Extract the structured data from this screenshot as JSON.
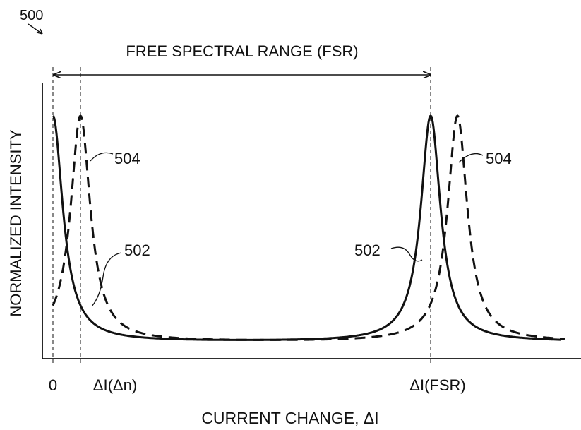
{
  "figure": {
    "number": "500",
    "title": "FREE SPECTRAL RANGE (FSR)",
    "xlabel": "CURRENT CHANGE, ΔI",
    "ylabel": "NORMALIZED INTENSITY",
    "ticks": {
      "zero": "0",
      "delta_n": "ΔI(Δn)",
      "fsr": "ΔI(FSR)"
    },
    "callouts": {
      "left_504": "504",
      "right_504": "504",
      "left_502": "502",
      "right_502": "502"
    }
  },
  "chart_data": {
    "type": "line",
    "x_ticks": [
      "0",
      "ΔI(Δn)",
      "ΔI(FSR)"
    ],
    "series": [
      {
        "name": "502",
        "style": "solid",
        "peaks_at": [
          "0",
          "ΔI(FSR)"
        ]
      },
      {
        "name": "504",
        "style": "dashed",
        "peaks_at": [
          "ΔI(Δn)",
          "ΔI(FSR) + ΔI(Δn)"
        ]
      }
    ],
    "grid": false
  }
}
